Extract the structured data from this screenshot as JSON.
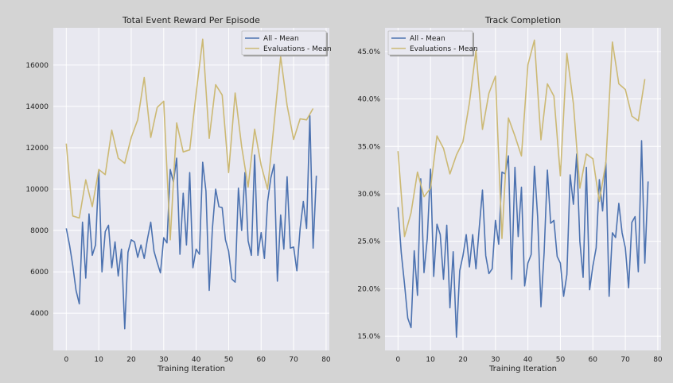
{
  "figure_background": "#d4d4d4",
  "plot_background": "#e8e8f0",
  "grid_color": "#ffffff",
  "chart_data": [
    {
      "type": "line",
      "title": "Total Event Reward Per Episode",
      "xlabel": "Training Iteration",
      "ylabel": "",
      "xlim": [
        -4,
        81
      ],
      "ylim": [
        2200,
        17800
      ],
      "xticks": [
        0,
        10,
        20,
        30,
        40,
        50,
        60,
        70,
        80
      ],
      "yticks": [
        4000,
        6000,
        8000,
        10000,
        12000,
        14000,
        16000
      ],
      "ytick_labels": [
        "4000",
        "6000",
        "8000",
        "10000",
        "12000",
        "14000",
        "16000"
      ],
      "grid": true,
      "legend_position": "top-right",
      "series": [
        {
          "name": "All - Mean",
          "color": "#4c72b0",
          "x": [
            0,
            1,
            2,
            3,
            4,
            5,
            6,
            7,
            8,
            9,
            10,
            11,
            12,
            13,
            14,
            15,
            16,
            17,
            18,
            19,
            20,
            21,
            22,
            23,
            24,
            25,
            26,
            27,
            28,
            29,
            30,
            31,
            32,
            33,
            34,
            35,
            36,
            37,
            38,
            39,
            40,
            41,
            42,
            43,
            44,
            45,
            46,
            47,
            48,
            49,
            50,
            51,
            52,
            53,
            54,
            55,
            56,
            57,
            58,
            59,
            60,
            61,
            62,
            63,
            64,
            65,
            66,
            67,
            68,
            69,
            70,
            71,
            72,
            73,
            74,
            75,
            76,
            77
          ],
          "values": [
            8100,
            7300,
            6300,
            5100,
            4450,
            8400,
            5700,
            8800,
            6800,
            7300,
            10900,
            6000,
            7950,
            8250,
            6200,
            7450,
            5800,
            7100,
            3250,
            6950,
            7550,
            7450,
            6700,
            7300,
            6650,
            7600,
            8400,
            7000,
            6450,
            5950,
            7650,
            7400,
            10950,
            10350,
            11500,
            6850,
            9800,
            7300,
            10800,
            6200,
            7100,
            6850,
            11300,
            9900,
            5100,
            8100,
            10000,
            9150,
            9100,
            7550,
            7000,
            5650,
            5500,
            10050,
            8000,
            10800,
            7500,
            6800,
            11650,
            6800,
            7900,
            6650,
            9400,
            10550,
            11200,
            5550,
            8750,
            7100,
            10600,
            7150,
            7200,
            6050,
            8100,
            9400,
            8100,
            13550,
            7150,
            10650
          ]
        },
        {
          "name": "Evaluations - Mean",
          "color": "#ccb974",
          "x": [
            0,
            2,
            4,
            6,
            8,
            10,
            12,
            14,
            16,
            18,
            20,
            22,
            24,
            26,
            28,
            30,
            32,
            34,
            36,
            38,
            40,
            42,
            44,
            46,
            48,
            50,
            52,
            54,
            56,
            58,
            60,
            62,
            64,
            66,
            68,
            70,
            72,
            74,
            76
          ],
          "values": [
            12200,
            8700,
            8600,
            10450,
            9150,
            10950,
            10700,
            12850,
            11500,
            11250,
            12500,
            13350,
            15400,
            12500,
            13950,
            14250,
            7550,
            13200,
            11800,
            11900,
            14650,
            17250,
            12450,
            15050,
            14550,
            10800,
            14650,
            12050,
            10100,
            12900,
            11150,
            10000,
            13200,
            16400,
            14050,
            12400,
            13400,
            13350,
            13900
          ]
        }
      ]
    },
    {
      "type": "line",
      "title": "Track Completion",
      "xlabel": "Training Iteration",
      "ylabel": "",
      "xlim": [
        -4,
        81
      ],
      "ylim": [
        13.5,
        47.5
      ],
      "xticks": [
        0,
        10,
        20,
        30,
        40,
        50,
        60,
        70,
        80
      ],
      "yticks": [
        15,
        20,
        25,
        30,
        35,
        40,
        45
      ],
      "ytick_labels": [
        "15.0%",
        "20.0%",
        "25.0%",
        "30.0%",
        "35.0%",
        "40.0%",
        "45.0%"
      ],
      "grid": true,
      "legend_position": "top-left",
      "series": [
        {
          "name": "All - Mean",
          "color": "#4c72b0",
          "x": [
            0,
            1,
            2,
            3,
            4,
            5,
            6,
            7,
            8,
            9,
            10,
            11,
            12,
            13,
            14,
            15,
            16,
            17,
            18,
            19,
            20,
            21,
            22,
            23,
            24,
            25,
            26,
            27,
            28,
            29,
            30,
            31,
            32,
            33,
            34,
            35,
            36,
            37,
            38,
            39,
            40,
            41,
            42,
            43,
            44,
            45,
            46,
            47,
            48,
            49,
            50,
            51,
            52,
            53,
            54,
            55,
            56,
            57,
            58,
            59,
            60,
            61,
            62,
            63,
            64,
            65,
            66,
            67,
            68,
            69,
            70,
            71,
            72,
            73,
            74,
            75,
            76,
            77
          ],
          "values": [
            28.6,
            23.8,
            20.5,
            16.9,
            15.9,
            24.0,
            19.3,
            31.6,
            21.7,
            25.3,
            32.6,
            21.3,
            26.8,
            25.7,
            21.0,
            26.7,
            18.0,
            23.9,
            14.9,
            21.9,
            23.5,
            25.7,
            22.3,
            25.7,
            22.1,
            26.4,
            30.4,
            23.5,
            21.6,
            22.1,
            27.2,
            24.7,
            32.3,
            32.1,
            34.0,
            21.0,
            32.8,
            25.5,
            30.7,
            20.3,
            22.7,
            23.6,
            32.9,
            27.5,
            18.1,
            23.8,
            32.5,
            26.9,
            27.2,
            23.4,
            22.7,
            19.2,
            21.5,
            32.0,
            28.9,
            34.2,
            25.0,
            21.2,
            32.8,
            19.9,
            22.4,
            24.3,
            31.5,
            28.2,
            33.3,
            19.2,
            25.9,
            25.4,
            29.0,
            25.9,
            24.3,
            20.1,
            27.0,
            27.6,
            21.8,
            35.6,
            22.7,
            31.3
          ]
        },
        {
          "name": "Evaluations - Mean",
          "color": "#ccb974",
          "x": [
            0,
            2,
            4,
            6,
            8,
            10,
            12,
            14,
            16,
            18,
            20,
            22,
            24,
            26,
            28,
            30,
            32,
            34,
            36,
            38,
            40,
            42,
            44,
            46,
            48,
            50,
            52,
            54,
            56,
            58,
            60,
            62,
            64,
            66,
            68,
            70,
            72,
            74,
            76
          ],
          "values": [
            34.5,
            25.5,
            28.0,
            32.3,
            29.7,
            30.6,
            36.1,
            34.8,
            32.1,
            34.1,
            35.5,
            39.6,
            45.1,
            36.8,
            40.6,
            42.4,
            25.3,
            38.0,
            36.1,
            34.0,
            43.6,
            46.2,
            35.7,
            41.6,
            40.3,
            31.9,
            44.8,
            39.5,
            30.6,
            34.2,
            33.7,
            29.2,
            33.3,
            46.0,
            41.6,
            41.0,
            38.2,
            37.7,
            42.1
          ]
        }
      ]
    }
  ]
}
